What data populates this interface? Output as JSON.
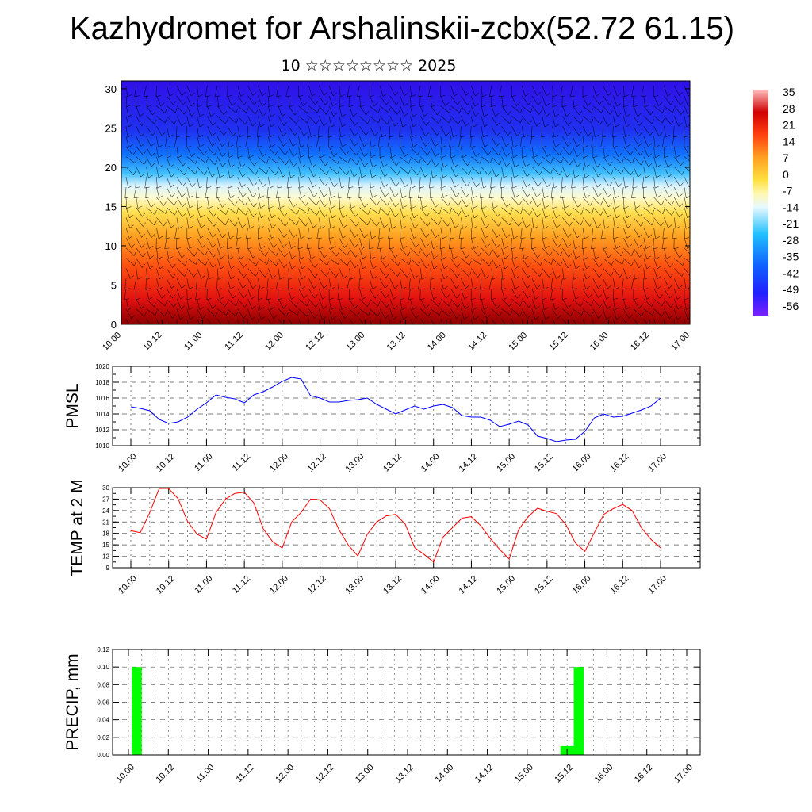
{
  "title": "Kazhydromet for Arshalinskii-zcbx(52.72 61.15)",
  "subtitle": "10 ☆☆☆☆☆☆☆☆ 2025",
  "chart_data": [
    {
      "type": "heatmap",
      "title": "",
      "xlabel": "",
      "ylabel": "",
      "x_ticks": [
        "10.00",
        "10.12",
        "11.00",
        "11.12",
        "12.00",
        "12.12",
        "13.00",
        "13.12",
        "14.00",
        "14.12",
        "15.00",
        "15.12",
        "16.00",
        "16.12",
        "17.00"
      ],
      "y_ticks": [
        0,
        5,
        10,
        15,
        20,
        25,
        30
      ],
      "ylim": [
        0,
        31
      ],
      "colorbar_labels": [
        35,
        28,
        21,
        14,
        7,
        0,
        -7,
        -14,
        -21,
        -28,
        -35,
        -42,
        -49,
        -56
      ],
      "overlay": "wind barbs"
    },
    {
      "type": "line",
      "ylabel": "PMSL",
      "ylim": [
        1010,
        1020
      ],
      "y_ticks": [
        1010,
        1012,
        1014,
        1016,
        1018,
        1020
      ],
      "x_ticks": [
        "10.00",
        "10.12",
        "11.00",
        "11.12",
        "12.00",
        "12.12",
        "13.00",
        "13.12",
        "14.00",
        "14.12",
        "15.00",
        "15.12",
        "16.00",
        "16.12",
        "17.00"
      ],
      "x": [
        0,
        3,
        6,
        9,
        12,
        15,
        18,
        21,
        24,
        27,
        30,
        33,
        36,
        39,
        42,
        45,
        48,
        51,
        54,
        57,
        60,
        63,
        66,
        69,
        72,
        75,
        78,
        81,
        84,
        87,
        90,
        93,
        96,
        99,
        102,
        105,
        108,
        111,
        114,
        117,
        120,
        123,
        126,
        129,
        132,
        135,
        138,
        141,
        144,
        147,
        150,
        153,
        156,
        159,
        162,
        165,
        168
      ],
      "values": [
        1014.9,
        1014.7,
        1014.4,
        1013.3,
        1012.8,
        1013.0,
        1013.6,
        1014.6,
        1015.4,
        1016.4,
        1016.1,
        1015.9,
        1015.4,
        1016.4,
        1016.8,
        1017.4,
        1018.1,
        1018.6,
        1018.4,
        1016.3,
        1016.0,
        1015.5,
        1015.5,
        1015.7,
        1015.8,
        1016.0,
        1015.2,
        1014.6,
        1014.0,
        1014.5,
        1015.0,
        1014.6,
        1015.0,
        1015.2,
        1014.8,
        1013.8,
        1013.6,
        1013.6,
        1013.2,
        1012.4,
        1012.7,
        1013.1,
        1012.6,
        1011.2,
        1010.9,
        1010.5,
        1010.7,
        1010.8,
        1011.8,
        1013.5,
        1014.0,
        1013.6,
        1013.7,
        1014.1,
        1014.5,
        1015.0,
        1016.0
      ],
      "color": "#0000ff"
    },
    {
      "type": "line",
      "ylabel": "TEMP at 2 M",
      "ylim": [
        9,
        30
      ],
      "y_ticks": [
        9,
        12,
        15,
        18,
        21,
        24,
        27,
        30
      ],
      "x_ticks": [
        "10.00",
        "10.12",
        "11.00",
        "11.12",
        "12.00",
        "12.12",
        "13.00",
        "13.12",
        "14.00",
        "14.12",
        "15.00",
        "15.12",
        "16.00",
        "16.12",
        "17.00"
      ],
      "x": [
        0,
        3,
        6,
        9,
        12,
        15,
        18,
        21,
        24,
        27,
        30,
        33,
        36,
        39,
        42,
        45,
        48,
        51,
        54,
        57,
        60,
        63,
        66,
        69,
        72,
        75,
        78,
        81,
        84,
        87,
        90,
        93,
        96,
        99,
        102,
        105,
        108,
        111,
        114,
        117,
        120,
        123,
        126,
        129,
        132,
        135,
        138,
        141,
        144,
        147,
        150,
        153,
        156,
        159,
        162,
        165,
        168
      ],
      "values": [
        18.7,
        18.2,
        23.5,
        29.8,
        29.8,
        27.1,
        21.1,
        17.8,
        16.5,
        23.5,
        27.0,
        28.5,
        28.8,
        26.0,
        19.2,
        15.8,
        14.2,
        21.0,
        23.5,
        27.0,
        26.8,
        24.5,
        19.0,
        14.9,
        12.1,
        17.8,
        21.0,
        22.6,
        23.0,
        20.5,
        14.3,
        12.5,
        10.5,
        17.0,
        19.5,
        22.0,
        22.4,
        20.0,
        16.7,
        13.8,
        11.3,
        19.0,
        22.4,
        24.6,
        23.8,
        23.2,
        20.3,
        15.5,
        13.3,
        18.2,
        23.0,
        24.5,
        25.6,
        24.0,
        19.4,
        16.4,
        14.2
      ],
      "color": "#ff0000"
    },
    {
      "type": "bar",
      "ylabel": "PRECIP, mm",
      "ylim": [
        0,
        0.12
      ],
      "y_ticks": [
        "0.00",
        "0.02",
        "0.04",
        "0.06",
        "0.08",
        "0.10",
        "0.12"
      ],
      "x_ticks": [
        "10.00",
        "10.12",
        "11.00",
        "11.12",
        "12.00",
        "12.12",
        "13.00",
        "13.12",
        "14.00",
        "14.12",
        "15.00",
        "15.12",
        "16.00",
        "16.12",
        "17.00"
      ],
      "bars": [
        {
          "x_start": 1,
          "x_end": 4,
          "value": 0.1
        },
        {
          "x_start": 130,
          "x_end": 134,
          "value": 0.01
        },
        {
          "x_start": 134,
          "x_end": 137,
          "value": 0.1
        }
      ],
      "color": "#00ff00"
    }
  ]
}
